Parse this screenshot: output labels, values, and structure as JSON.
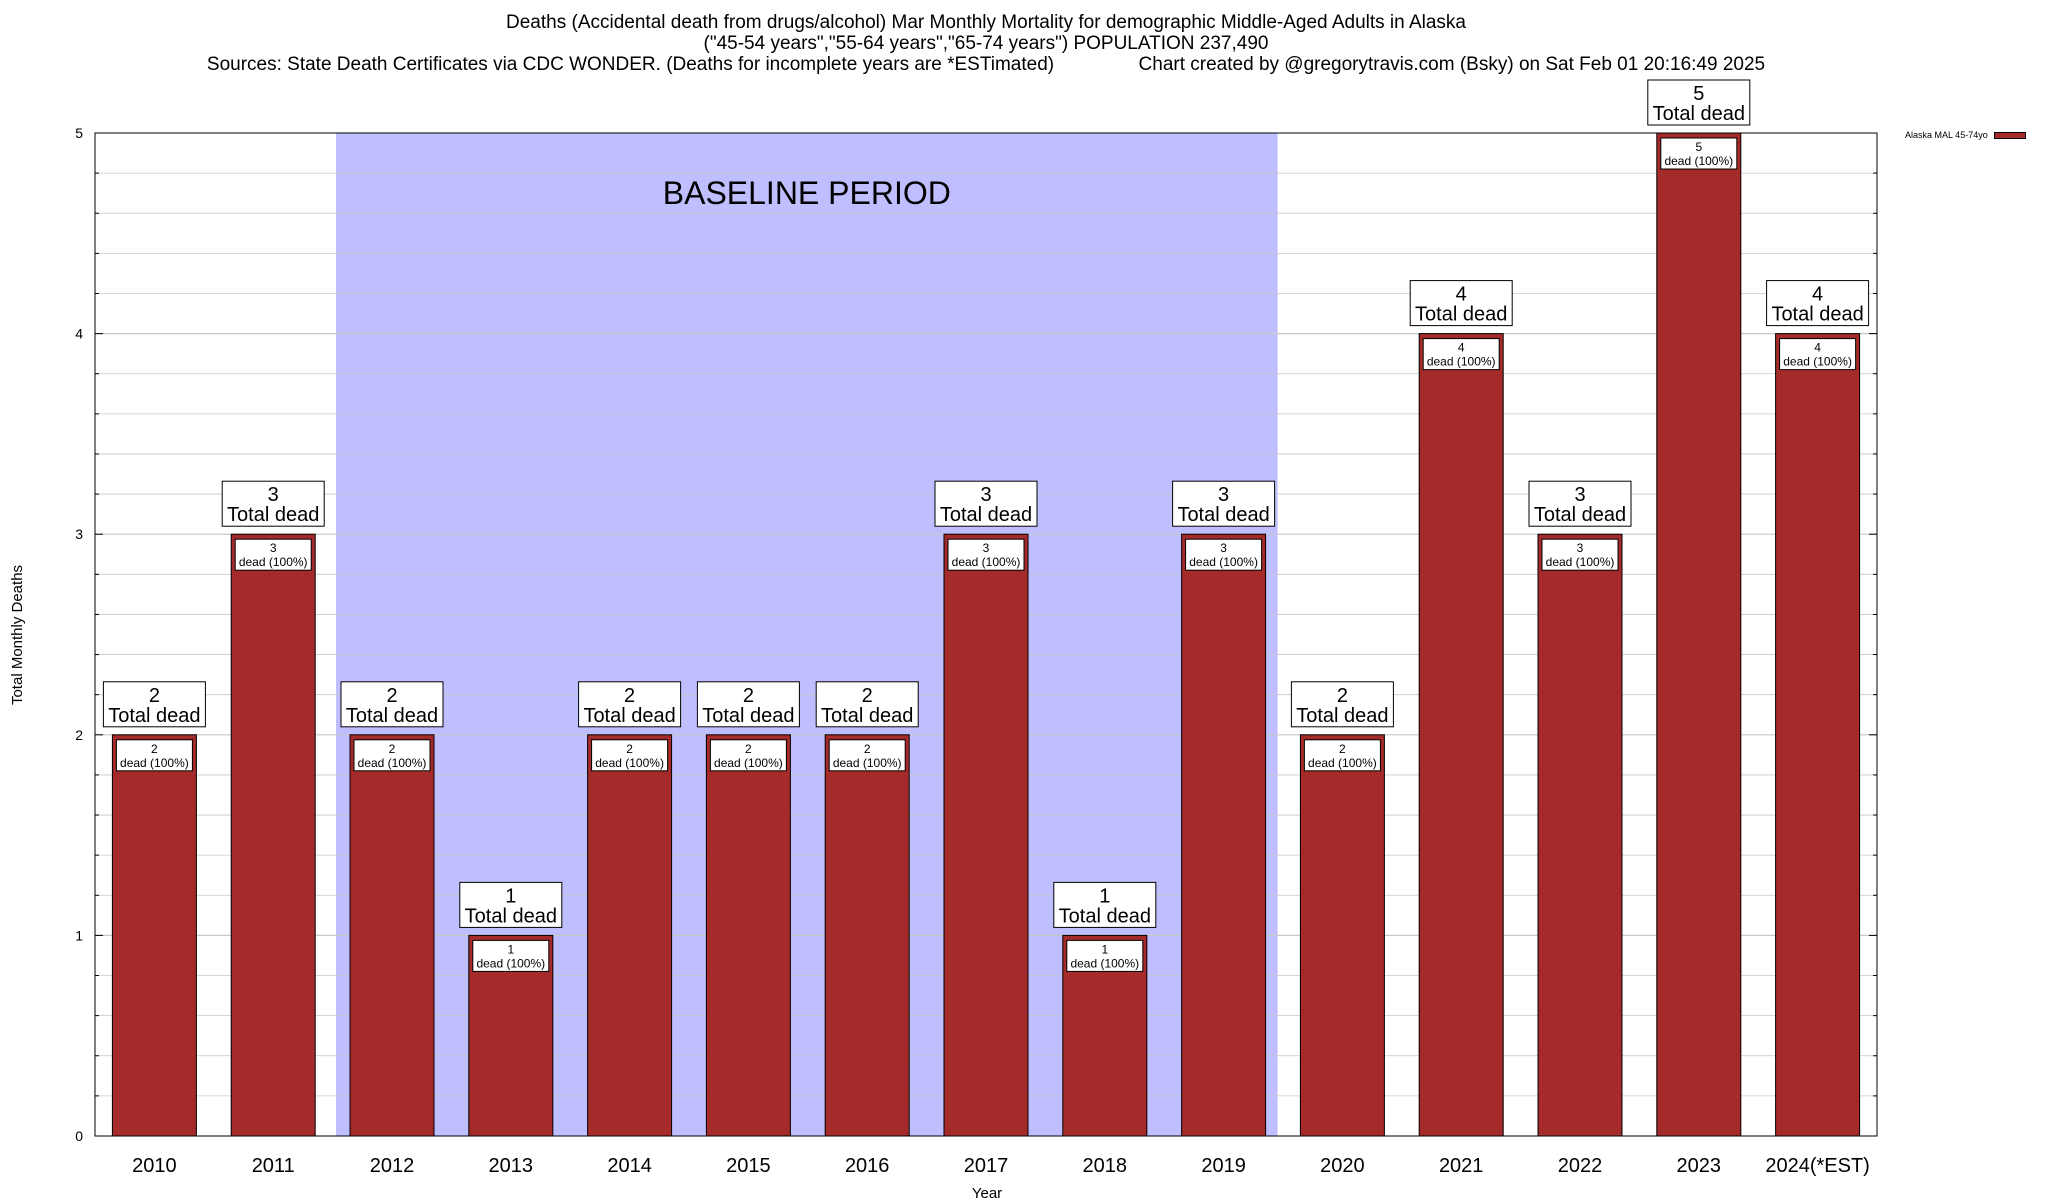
{
  "title_lines": [
    "Deaths (Accidental death from drugs/alcohol) Mar Monthly Mortality for demographic Middle-Aged Adults in Alaska",
    "(\"45-54 years\",\"55-64 years\",\"65-74 years\") POPULATION 237,490",
    "Sources: State Death Certificates via CDC WONDER. (Deaths for incomplete years are *ESTimated)                Chart created by @gregorytravis.com (Bsky) on Sat Feb 01 20:16:49 2025"
  ],
  "legend_label": "Alaska MAL 45-74yo",
  "colors": {
    "bar": "#a52a2a",
    "baseline": "#bfbfff",
    "grid": "#c8c8c8"
  },
  "chart_data": {
    "type": "bar",
    "title": "Deaths (Accidental death from drugs/alcohol) Mar Monthly Mortality for demographic Middle-Aged Adults in Alaska",
    "xlabel": "Year",
    "ylabel": "Total Monthly Deaths",
    "ylim": [
      0,
      5
    ],
    "yticks": [
      0,
      1,
      2,
      3,
      4,
      5
    ],
    "grid": true,
    "legend_position": "top-right",
    "categories": [
      "2010",
      "2011",
      "2012",
      "2013",
      "2014",
      "2015",
      "2016",
      "2017",
      "2018",
      "2019",
      "2020",
      "2021",
      "2022",
      "2023",
      "2024(*EST)"
    ],
    "series": [
      {
        "name": "Alaska MAL 45-74yo",
        "values": [
          2,
          3,
          2,
          1,
          2,
          2,
          2,
          3,
          1,
          3,
          2,
          4,
          3,
          5,
          4
        ]
      }
    ],
    "baseline_period": {
      "label": "BASELINE PERIOD",
      "start": "2012",
      "end": "2019"
    },
    "total_label_text": "Total dead",
    "inner_label_text": "dead (100%)"
  }
}
